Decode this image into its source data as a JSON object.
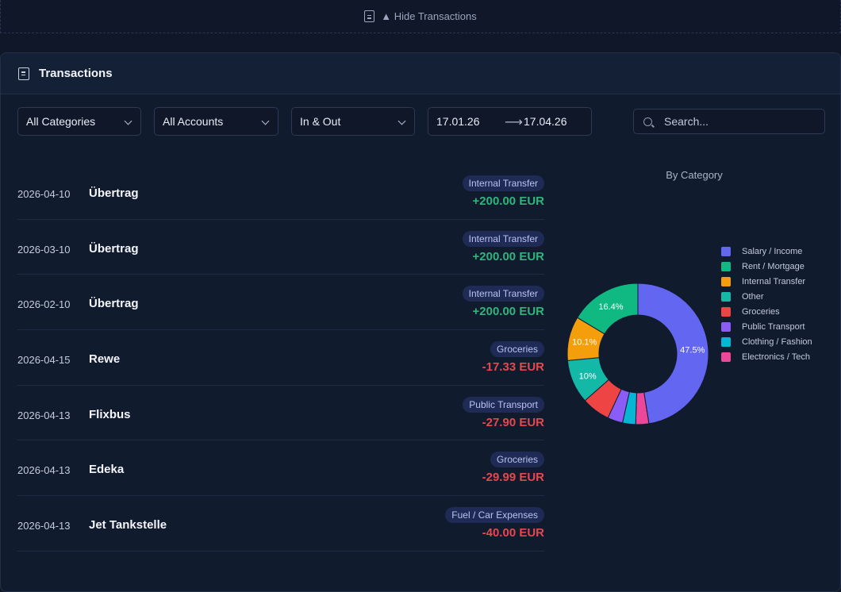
{
  "toggle": {
    "label": "▲ Hide Transactions",
    "icon": "document-icon"
  },
  "panel": {
    "title": "Transactions",
    "icon": "document-icon"
  },
  "filters": {
    "category": "All Categories",
    "account": "All Accounts",
    "direction": "In & Out",
    "date_from": "17.01.26",
    "date_to": "17.04.26",
    "search_placeholder": "Search..."
  },
  "transactions": [
    {
      "date": "2026-04-10",
      "name": "Übertrag",
      "category": "Internal Transfer",
      "amount": "+200.00 EUR",
      "sign": "pos"
    },
    {
      "date": "2026-03-10",
      "name": "Übertrag",
      "category": "Internal Transfer",
      "amount": "+200.00 EUR",
      "sign": "pos"
    },
    {
      "date": "2026-02-10",
      "name": "Übertrag",
      "category": "Internal Transfer",
      "amount": "+200.00 EUR",
      "sign": "pos"
    },
    {
      "date": "2026-04-15",
      "name": "Rewe",
      "category": "Groceries",
      "amount": "-17.33 EUR",
      "sign": "neg"
    },
    {
      "date": "2026-04-13",
      "name": "Flixbus",
      "category": "Public Transport",
      "amount": "-27.90 EUR",
      "sign": "neg"
    },
    {
      "date": "2026-04-13",
      "name": "Edeka",
      "category": "Groceries",
      "amount": "-29.99 EUR",
      "sign": "neg"
    },
    {
      "date": "2026-04-13",
      "name": "Jet Tankstelle",
      "category": "Fuel / Car Expenses",
      "amount": "-40.00 EUR",
      "sign": "neg"
    }
  ],
  "chart_data": {
    "type": "pie",
    "title": "By Category",
    "donut": true,
    "legend_position": "right",
    "slices": [
      {
        "label": "Salary / Income",
        "value": 47.5,
        "display": "47.5%",
        "color": "#6366f1"
      },
      {
        "label": "Electronics / Tech",
        "value": 3.0,
        "display": "",
        "color": "#ec4899"
      },
      {
        "label": "Clothing / Fashion",
        "value": 3.0,
        "display": "",
        "color": "#06b6d4"
      },
      {
        "label": "Public Transport",
        "value": 3.5,
        "display": "",
        "color": "#8b5cf6"
      },
      {
        "label": "Groceries",
        "value": 6.5,
        "display": "",
        "color": "#ef4444"
      },
      {
        "label": "Other",
        "value": 10.0,
        "display": "10%",
        "color": "#14b8a6"
      },
      {
        "label": "Internal Transfer",
        "value": 10.1,
        "display": "10.1%",
        "color": "#f59e0b"
      },
      {
        "label": "Rent / Mortgage",
        "value": 16.4,
        "display": "16.4%",
        "color": "#10b981"
      }
    ],
    "legend": [
      {
        "label": "Salary / Income",
        "color": "#6366f1"
      },
      {
        "label": "Rent / Mortgage",
        "color": "#10b981"
      },
      {
        "label": "Internal Transfer",
        "color": "#f59e0b"
      },
      {
        "label": "Other",
        "color": "#14b8a6"
      },
      {
        "label": "Groceries",
        "color": "#ef4444"
      },
      {
        "label": "Public Transport",
        "color": "#8b5cf6"
      },
      {
        "label": "Clothing / Fashion",
        "color": "#06b6d4"
      },
      {
        "label": "Electronics / Tech",
        "color": "#ec4899"
      }
    ]
  }
}
